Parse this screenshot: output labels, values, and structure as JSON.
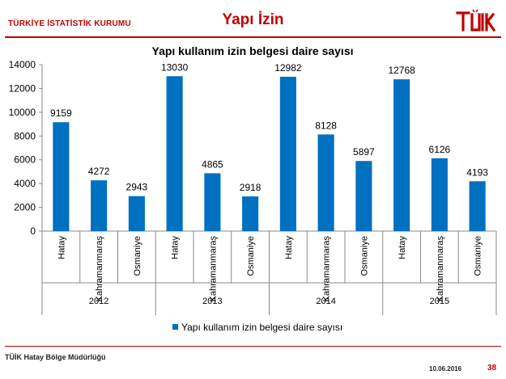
{
  "header": {
    "org_name": "TÜRKİYE İSTATİSTİK KURUMU",
    "page_title": "Yapı İzin",
    "logo_text": "TÜİK"
  },
  "footer": {
    "office": "TÜİK Hatay Bölge Müdürlüğü",
    "date": "10.06.2016",
    "page_number": "38"
  },
  "colors": {
    "brand": "#c00000",
    "bar": "#0070c0"
  },
  "chart_data": {
    "type": "bar",
    "title": "Yapı kullanım izin belgesi daire sayısı",
    "xlabel": "",
    "ylabel": "",
    "ylim": [
      0,
      14000
    ],
    "yticks": [
      0,
      2000,
      4000,
      6000,
      8000,
      10000,
      12000,
      14000
    ],
    "groups": [
      "2012",
      "2013",
      "2014",
      "2015"
    ],
    "categories": [
      "Hatay",
      "Kahramanmaraş",
      "Osmaniye",
      "Hatay",
      "Kahramanmaraş",
      "Osmaniye",
      "Hatay",
      "Kahramanmaraş",
      "Osmaniye",
      "Hatay",
      "Kahramanmaraş",
      "Osmaniye"
    ],
    "series": [
      {
        "name": "Yapı kullanım izin belgesi daire sayısı",
        "values": [
          9159,
          4272,
          2943,
          13030,
          4865,
          2918,
          12982,
          8128,
          5897,
          12768,
          6126,
          4193
        ]
      }
    ],
    "legend_position": "bottom",
    "grid": false,
    "data_labels": true
  }
}
